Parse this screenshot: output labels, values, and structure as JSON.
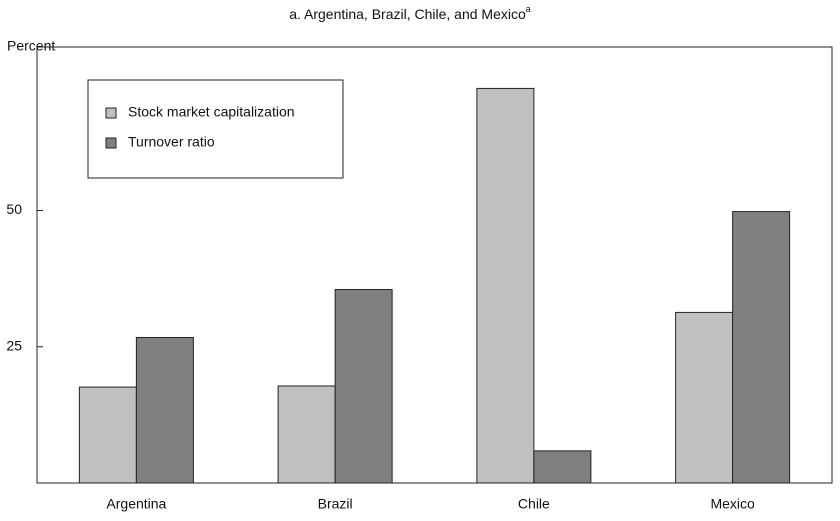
{
  "chart_data": {
    "type": "bar",
    "title": "a. Argentina, Brazil, Chile, and Mexico",
    "title_superscript": "a",
    "y_label": "Percent",
    "categories": [
      "Argentina",
      "Brazil",
      "Chile",
      "Mexico"
    ],
    "series": [
      {
        "name": "Stock market capitalization",
        "color": "#c0c0c0",
        "values": [
          17.6,
          17.8,
          72.4,
          31.3
        ]
      },
      {
        "name": "Turnover ratio",
        "color": "#808080",
        "values": [
          26.7,
          35.5,
          5.9,
          49.8
        ]
      }
    ],
    "ylim": [
      0,
      80
    ],
    "yticks": [
      25,
      50
    ],
    "grid": false,
    "legend": "upper left"
  }
}
